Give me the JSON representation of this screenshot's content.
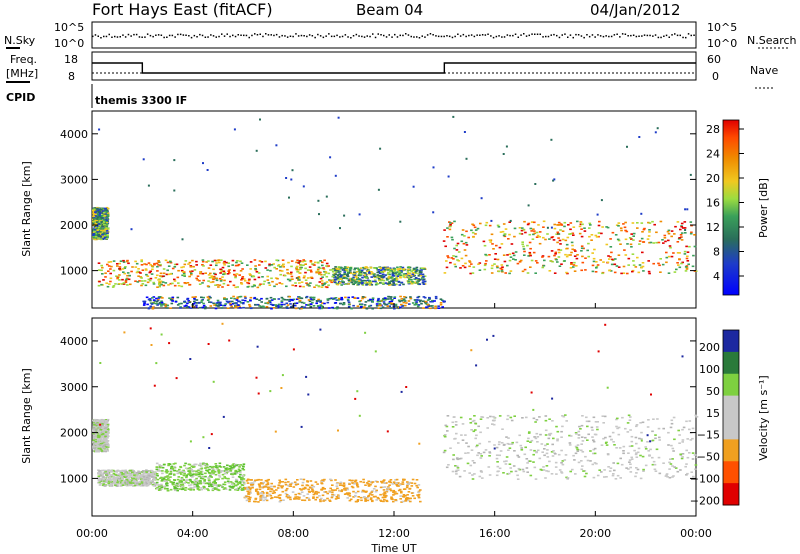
{
  "header": {
    "title": "Fort Hays East (fitACF)",
    "beam": "Beam 04",
    "date": "04/Jan/2012"
  },
  "status_panels": {
    "nsky_label": "N.Sky",
    "nsky_ticks": [
      "10^5",
      "10^0"
    ],
    "nsearch_label": "N.Search",
    "nsearch_ticks": [
      "10^5",
      "10^0"
    ],
    "freq_label": "Freq.",
    "freq_unit": "[MHz]",
    "freq_ticks": [
      "18",
      "8"
    ],
    "nave_label": "Nave",
    "nave_ticks": [
      "60",
      "0"
    ],
    "cpid_label": "CPID",
    "cpid_value": "themis 3300 IF"
  },
  "chart_data": [
    {
      "type": "heatmap",
      "name": "power",
      "ylabel": "Slant Range [km]",
      "xlabel": "",
      "xlim": [
        0,
        24
      ],
      "ylim": [
        180,
        4500
      ],
      "yticks": [
        1000,
        2000,
        3000,
        4000
      ],
      "colorbar": {
        "label": "Power [dB]",
        "ticks": [
          "4",
          "8",
          "12",
          "16",
          "20",
          "24",
          "28"
        ],
        "colors": [
          "#0000ff",
          "#1e3cc8",
          "#2a6e5a",
          "#3aa05a",
          "#9cdc40",
          "#f0c820",
          "#f08c00",
          "#ff5000",
          "#e00000"
        ]
      },
      "features": [
        {
          "t": [
            0.0,
            0.6
          ],
          "range": [
            1700,
            2400
          ],
          "level": "medium"
        },
        {
          "t": [
            0.2,
            9.5
          ],
          "range": [
            650,
            1250
          ],
          "level": "high"
        },
        {
          "t": [
            9.5,
            13.2
          ],
          "range": [
            700,
            1100
          ],
          "level": "medium"
        },
        {
          "t": [
            13.9,
            24.0
          ],
          "range": [
            950,
            2100
          ],
          "level": "high"
        },
        {
          "t": [
            2.0,
            14.0
          ],
          "range": [
            180,
            450
          ],
          "level": "low"
        }
      ]
    },
    {
      "type": "heatmap",
      "name": "velocity",
      "ylabel": "Slant Range [km]",
      "xlabel": "Time UT",
      "xlim": [
        0,
        24
      ],
      "ylim": [
        180,
        4500
      ],
      "xticks": [
        "00:00",
        "04:00",
        "08:00",
        "12:00",
        "16:00",
        "20:00",
        "00:00"
      ],
      "yticks": [
        1000,
        2000,
        3000,
        4000
      ],
      "colorbar": {
        "label": "Velocity [m s⁻¹]",
        "ticks": [
          "200",
          "100",
          "50",
          "15",
          "−15",
          "−50",
          "−100",
          "−200"
        ],
        "colors": [
          "#1c28a0",
          "#2a7a3a",
          "#7ed040",
          "#c8c8c8",
          "#c8c8c8",
          "#f0a020",
          "#ff5000",
          "#e00000"
        ]
      },
      "features": [
        {
          "t": [
            0.0,
            0.6
          ],
          "range": [
            1600,
            2300
          ],
          "velocity": "near zero"
        },
        {
          "t": [
            0.2,
            2.5
          ],
          "range": [
            850,
            1200
          ],
          "velocity": "near zero"
        },
        {
          "t": [
            2.5,
            6.0
          ],
          "range": [
            750,
            1350
          ],
          "velocity": "positive ~50-100"
        },
        {
          "t": [
            6.0,
            13.0
          ],
          "range": [
            500,
            1000
          ],
          "velocity": "negative ~-15 to -50"
        },
        {
          "t": [
            13.9,
            24.0
          ],
          "range": [
            1000,
            2400
          ],
          "velocity": "near zero"
        }
      ]
    }
  ]
}
